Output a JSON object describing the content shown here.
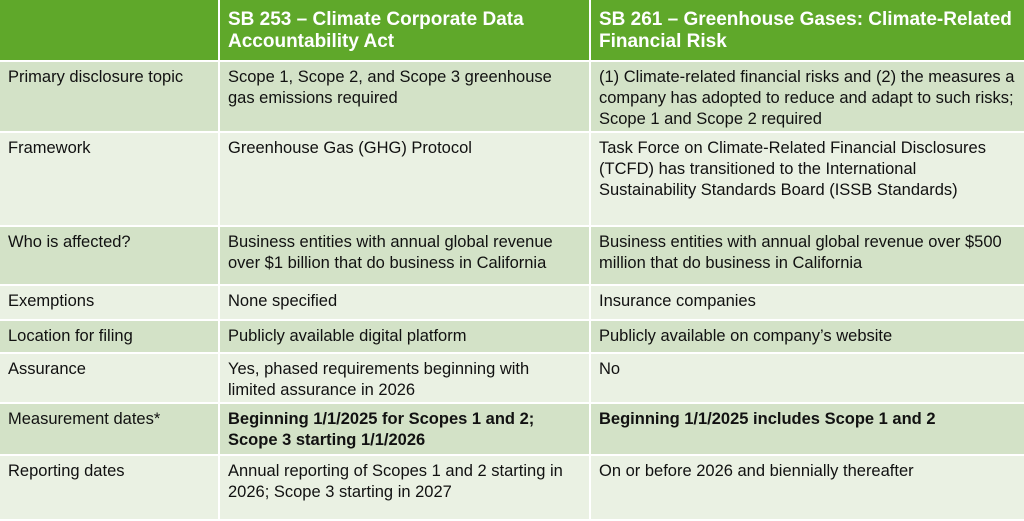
{
  "header": {
    "col0": "",
    "col1": "SB 253 – Climate Corporate Data Accountability Act",
    "col2": "SB 261 – Greenhouse Gases: Climate-Related Financial Risk"
  },
  "rows": [
    {
      "label": "Primary disclosure topic",
      "sb253": "Scope 1, Scope 2, and Scope 3 greenhouse gas emissions required",
      "sb261": "(1) Climate-related financial risks and (2) the measures a company has adopted to reduce and adapt to such risks; Scope 1 and Scope 2 required"
    },
    {
      "label": "Framework",
      "sb253": "Greenhouse Gas (GHG) Protocol",
      "sb261": "Task Force on Climate-Related Financial Disclosures (TCFD) has transitioned to the International Sustainability Standards Board (ISSB Standards)"
    },
    {
      "label": "Who is affected?",
      "sb253": "Business entities with annual global revenue over $1 billion that do business in California",
      "sb261": "Business entities with annual global revenue over $500 million that do business in California"
    },
    {
      "label": "Exemptions",
      "sb253": "None specified",
      "sb261": "Insurance companies"
    },
    {
      "label": "Location for filing",
      "sb253": "Publicly available digital platform",
      "sb261": "Publicly available on company’s website"
    },
    {
      "label": "Assurance",
      "sb253": "Yes, phased requirements beginning with limited assurance in 2026",
      "sb261": "No"
    },
    {
      "label": "Measurement dates*",
      "sb253": "Beginning 1/1/2025 for Scopes 1 and 2; Scope 3 starting 1/1/2026",
      "sb261": "Beginning 1/1/2025 includes Scope 1 and 2"
    },
    {
      "label": "Reporting dates",
      "sb253": "Annual reporting of Scopes 1 and 2 starting in 2026; Scope 3 starting in 2027",
      "sb261": "On or before 2026 and biennially thereafter"
    }
  ],
  "colors": {
    "header_bg": "#5fa82a",
    "row_dark": "#d3e2c7",
    "row_light": "#eaf1e3"
  }
}
